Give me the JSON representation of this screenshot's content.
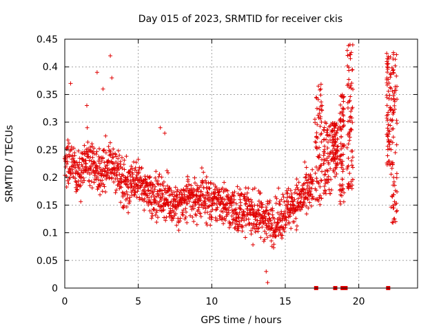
{
  "chart_data": {
    "type": "scatter",
    "title": "Day 015 of 2023, SRMTID for receiver ckis",
    "xlabel": "GPS time / hours",
    "ylabel": "SRMTID / TECUs",
    "xlim": [
      0,
      24
    ],
    "ylim": [
      0,
      0.45
    ],
    "xticks": [
      0,
      5,
      10,
      15,
      20
    ],
    "xtick_labels": [
      "0",
      "5",
      "10",
      "15",
      "20"
    ],
    "yticks": [
      0,
      0.05,
      0.1,
      0.15,
      0.2,
      0.25,
      0.3,
      0.35,
      0.4,
      0.45
    ],
    "ytick_labels": [
      "0",
      "0.05",
      "0.1",
      "0.15",
      "0.2",
      "0.25",
      "0.3",
      "0.35",
      "0.4",
      "0.45"
    ],
    "grid": true,
    "marker": "+",
    "color": "#e00000",
    "series": [
      {
        "name": "SRMTID",
        "profile": {
          "x": [
            0,
            0.5,
            1.0,
            1.5,
            2.0,
            2.5,
            3.0,
            3.5,
            4.0,
            4.5,
            5.0,
            5.5,
            6.0,
            6.5,
            7.0,
            7.5,
            8.0,
            8.5,
            9.0,
            9.5,
            10.0,
            10.5,
            11.0,
            11.5,
            12.0,
            12.5,
            13.0,
            13.5,
            14.0,
            14.5,
            15.0,
            15.5,
            16.0,
            16.5,
            16.9
          ],
          "y": [
            0.23,
            0.22,
            0.2,
            0.23,
            0.22,
            0.21,
            0.23,
            0.21,
            0.19,
            0.18,
            0.19,
            0.18,
            0.17,
            0.17,
            0.16,
            0.15,
            0.15,
            0.16,
            0.16,
            0.17,
            0.15,
            0.16,
            0.15,
            0.14,
            0.14,
            0.14,
            0.13,
            0.13,
            0.12,
            0.12,
            0.14,
            0.15,
            0.16,
            0.17,
            0.18
          ]
        },
        "late_clusters": [
          {
            "x_range": [
              17.0,
              17.5
            ],
            "y_range": [
              0.15,
              0.37
            ]
          },
          {
            "x_range": [
              17.6,
              18.2
            ],
            "y_range": [
              0.17,
              0.3
            ]
          },
          {
            "x_range": [
              18.2,
              18.6
            ],
            "y_range": [
              0.2,
              0.3
            ]
          },
          {
            "x_range": [
              18.7,
              19.0
            ],
            "y_range": [
              0.15,
              0.35
            ]
          },
          {
            "x_range": [
              19.2,
              19.6
            ],
            "y_range": [
              0.18,
              0.44
            ]
          },
          {
            "x_range": [
              21.9,
              22.2
            ],
            "y_range": [
              0.22,
              0.43
            ]
          },
          {
            "x_range": [
              22.2,
              22.6
            ],
            "y_range": [
              0.11,
              0.43
            ]
          }
        ],
        "spikes": [
          {
            "x": 0.4,
            "y": 0.37
          },
          {
            "x": 1.5,
            "y": 0.33
          },
          {
            "x": 2.2,
            "y": 0.39
          },
          {
            "x": 2.6,
            "y": 0.36
          },
          {
            "x": 3.1,
            "y": 0.42
          },
          {
            "x": 3.2,
            "y": 0.38
          },
          {
            "x": 6.5,
            "y": 0.29
          },
          {
            "x": 6.8,
            "y": 0.28
          },
          {
            "x": 13.8,
            "y": 0.01
          },
          {
            "x": 13.7,
            "y": 0.03
          },
          {
            "x": 19.4,
            "y": 0.44
          },
          {
            "x": 19.3,
            "y": 0.18
          },
          {
            "x": 22.5,
            "y": 0.12
          },
          {
            "x": 22.6,
            "y": 0.14
          }
        ]
      }
    ],
    "zero_markers_x": [
      17.1,
      18.4,
      18.9,
      19.1,
      22.0
    ]
  }
}
